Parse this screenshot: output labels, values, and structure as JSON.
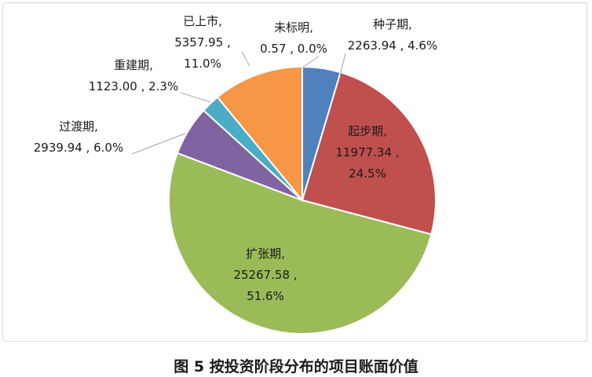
{
  "caption": "图 5 按投资阶段分布的项目账面价值",
  "chart_data": {
    "type": "pie",
    "title": "",
    "slices": [
      {
        "name": "种子期",
        "value": 2263.94,
        "value_text": "2263.94",
        "percent": 4.6,
        "percent_text": "4.6%",
        "color": "#4f81bd"
      },
      {
        "name": "起步期",
        "value": 11977.34,
        "value_text": "11977.34",
        "percent": 24.5,
        "percent_text": "24.5%",
        "color": "#c0504d"
      },
      {
        "name": "扩张期",
        "value": 25267.58,
        "value_text": "25267.58",
        "percent": 51.6,
        "percent_text": "51.6%",
        "color": "#9bbb59"
      },
      {
        "name": "过渡期",
        "value": 2939.94,
        "value_text": "2939.94",
        "percent": 6.0,
        "percent_text": "6.0%",
        "color": "#8064a2"
      },
      {
        "name": "重建期",
        "value": 1123.0,
        "value_text": "1123.00",
        "percent": 2.3,
        "percent_text": "2.3%",
        "color": "#4bacc6"
      },
      {
        "name": "已上市",
        "value": 5357.95,
        "value_text": "5357.95",
        "percent": 11.0,
        "percent_text": "11.0%",
        "color": "#f79646"
      },
      {
        "name": "未标明",
        "value": 0.57,
        "value_text": "0.57",
        "percent": 0.0,
        "percent_text": "0.0%",
        "color": "#2c4d75"
      }
    ],
    "label_separator": " , "
  }
}
